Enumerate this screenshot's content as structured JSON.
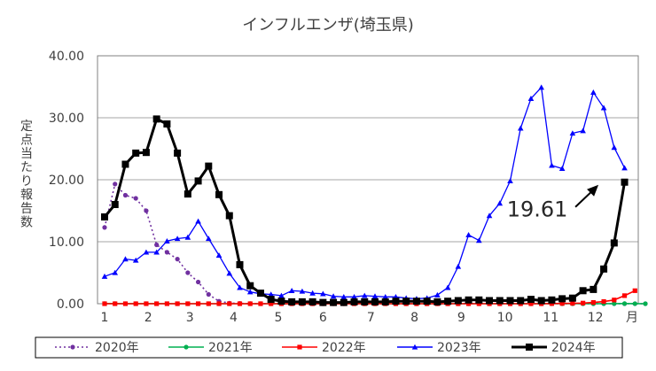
{
  "chart_data": {
    "type": "line",
    "title": "インフルエンザ(埼玉県)",
    "ylabel": "定点当たり報告数",
    "xunit": "月",
    "ylim": [
      0,
      40
    ],
    "yticks": [
      "0.00",
      "10.00",
      "20.00",
      "30.00",
      "40.00"
    ],
    "xticks": [
      {
        "label": "1",
        "week": 1
      },
      {
        "label": "2",
        "week": 5.2
      },
      {
        "label": "3",
        "week": 9.2
      },
      {
        "label": "4",
        "week": 13.4
      },
      {
        "label": "5",
        "week": 17.7
      },
      {
        "label": "6",
        "week": 22
      },
      {
        "label": "7",
        "week": 26.6
      },
      {
        "label": "8",
        "week": 30.8
      },
      {
        "label": "9",
        "week": 35.3
      },
      {
        "label": "10",
        "week": 39.5
      },
      {
        "label": "11",
        "week": 43.9
      },
      {
        "label": "12",
        "week": 48.2
      }
    ],
    "grid": true,
    "legend_position": "bottom",
    "annotation": {
      "text": "19.61",
      "week": 49,
      "value": 19.61
    },
    "series": [
      {
        "name": "2020年",
        "color": "#7030A0",
        "style": "dotted",
        "marker": "circle",
        "values": [
          12.3,
          19.3,
          17.5,
          17,
          15,
          9.5,
          8.3,
          7.2,
          5,
          3.5,
          1.5,
          0.4,
          0.1,
          0.05,
          0.02,
          0.01,
          0,
          0,
          0,
          0,
          0,
          0,
          0,
          0,
          0,
          0,
          0,
          0,
          0,
          0,
          0,
          0,
          0,
          0,
          0,
          0,
          0,
          0,
          0,
          0,
          0,
          0,
          0,
          0,
          0,
          0,
          0,
          0,
          0,
          0,
          0,
          0,
          0
        ]
      },
      {
        "name": "2021年",
        "color": "#00B050",
        "style": "solid",
        "marker": "circle",
        "values": [
          0.02,
          0.02,
          0.01,
          0.01,
          0.01,
          0.01,
          0.01,
          0,
          0,
          0,
          0,
          0,
          0,
          0,
          0,
          0,
          0,
          0,
          0,
          0,
          0,
          0,
          0,
          0,
          0,
          0,
          0,
          0,
          0,
          0,
          0,
          0,
          0,
          0,
          0,
          0,
          0,
          0,
          0,
          0,
          0,
          0,
          0,
          0,
          0,
          0,
          0,
          0,
          0.01,
          0.01,
          0.02,
          0.01,
          0
        ]
      },
      {
        "name": "2022年",
        "color": "#FF0000",
        "style": "solid",
        "marker": "square",
        "values": [
          0,
          0,
          0,
          0,
          0,
          0,
          0,
          0,
          0,
          0,
          0,
          0,
          0,
          0,
          0,
          0,
          0,
          0,
          0,
          0,
          0,
          0,
          0,
          0,
          0,
          0,
          0,
          0,
          0,
          0,
          0,
          0,
          0,
          0,
          0,
          0,
          0,
          0,
          0,
          0,
          0,
          0,
          0,
          0.02,
          0.04,
          0.06,
          0.1,
          0.2,
          0.35,
          0.6,
          1.3,
          2.1
        ]
      },
      {
        "name": "2023年",
        "color": "#0000FF",
        "style": "solid",
        "marker": "triangle",
        "values": [
          4.4,
          5,
          7.2,
          7,
          8.3,
          8.3,
          10.1,
          10.5,
          10.7,
          13.3,
          10.5,
          7.8,
          4.9,
          2.6,
          1.9,
          1.6,
          1.5,
          1.3,
          2.1,
          2,
          1.7,
          1.6,
          1.2,
          1.1,
          1.1,
          1.3,
          1.2,
          1.1,
          1.1,
          0.9,
          0.8,
          0.9,
          1.4,
          2.6,
          6,
          11.1,
          10.2,
          14.2,
          16.2,
          19.8,
          28.3,
          33.1,
          34.9,
          22.3,
          21.8,
          27.5,
          27.9,
          34.1,
          31.6,
          25.2,
          21.9
        ]
      },
      {
        "name": "2024年",
        "color": "#000000",
        "style": "solid",
        "marker": "square",
        "values": [
          14,
          16,
          22.5,
          24.3,
          24.4,
          29.8,
          29,
          24.3,
          17.7,
          19.8,
          22.2,
          17.6,
          14.2,
          6.3,
          2.9,
          1.7,
          0.7,
          0.4,
          0.3,
          0.3,
          0.3,
          0.2,
          0.2,
          0.2,
          0.3,
          0.3,
          0.3,
          0.3,
          0.4,
          0.4,
          0.4,
          0.4,
          0.3,
          0.4,
          0.5,
          0.6,
          0.6,
          0.5,
          0.5,
          0.5,
          0.5,
          0.7,
          0.5,
          0.6,
          0.8,
          0.9,
          2.1,
          2.3,
          5.6,
          9.8,
          19.61
        ]
      }
    ]
  }
}
